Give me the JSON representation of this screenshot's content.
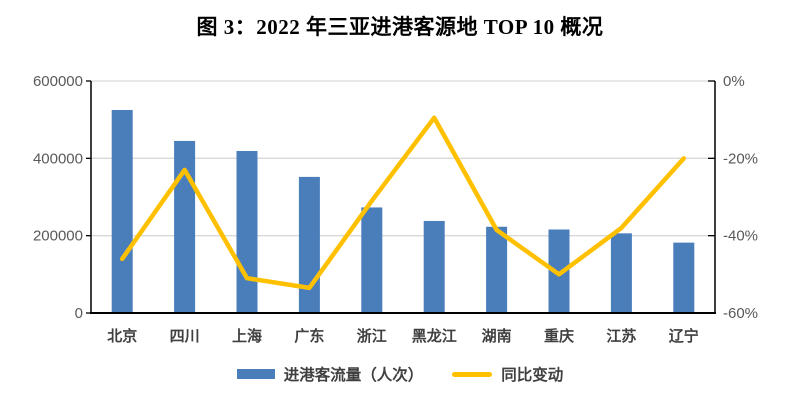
{
  "title": "图 3：2022 年三亚进港客源地 TOP 10 概况",
  "legend": {
    "bar_label": "进港客流量（人次）",
    "line_label": "同比变动"
  },
  "colors": {
    "bar": "#4A7EBB",
    "line": "#FFC000",
    "grid": "#D9D9D9",
    "axis": "#000000",
    "axis_tick_label": "#595959",
    "category_label": "#404040"
  },
  "chart_data": {
    "type": "bar",
    "subtype": "combo-bar-line",
    "title": "图 3：2022 年三亚进港客源地 TOP 10 概况",
    "categories": [
      "北京",
      "四川",
      "上海",
      "广东",
      "浙江",
      "黑龙江",
      "湖南",
      "重庆",
      "江苏",
      "辽宁"
    ],
    "series": [
      {
        "name": "进港客流量（人次）",
        "type": "bar",
        "axis": "left",
        "values": [
          525000,
          445000,
          419000,
          352000,
          273000,
          238000,
          223000,
          216000,
          206000,
          182000
        ]
      },
      {
        "name": "同比变动",
        "type": "line",
        "axis": "right",
        "unit": "%",
        "values": [
          -46,
          -23,
          -51,
          -53.5,
          -31,
          -9.5,
          -38.5,
          -50,
          -38,
          -20
        ]
      }
    ],
    "left_axis": {
      "range": [
        0,
        600000
      ],
      "tick_values": [
        600000,
        400000,
        200000,
        0
      ],
      "tick_labels": [
        "600000",
        "400000",
        "200000",
        "0"
      ]
    },
    "right_axis": {
      "range": [
        -60,
        0
      ],
      "tick_values": [
        0,
        -20,
        -40,
        -60
      ],
      "tick_labels": [
        "0%",
        "-20%",
        "-40%",
        "-60%"
      ]
    },
    "grid": true,
    "legend_position": "bottom"
  }
}
